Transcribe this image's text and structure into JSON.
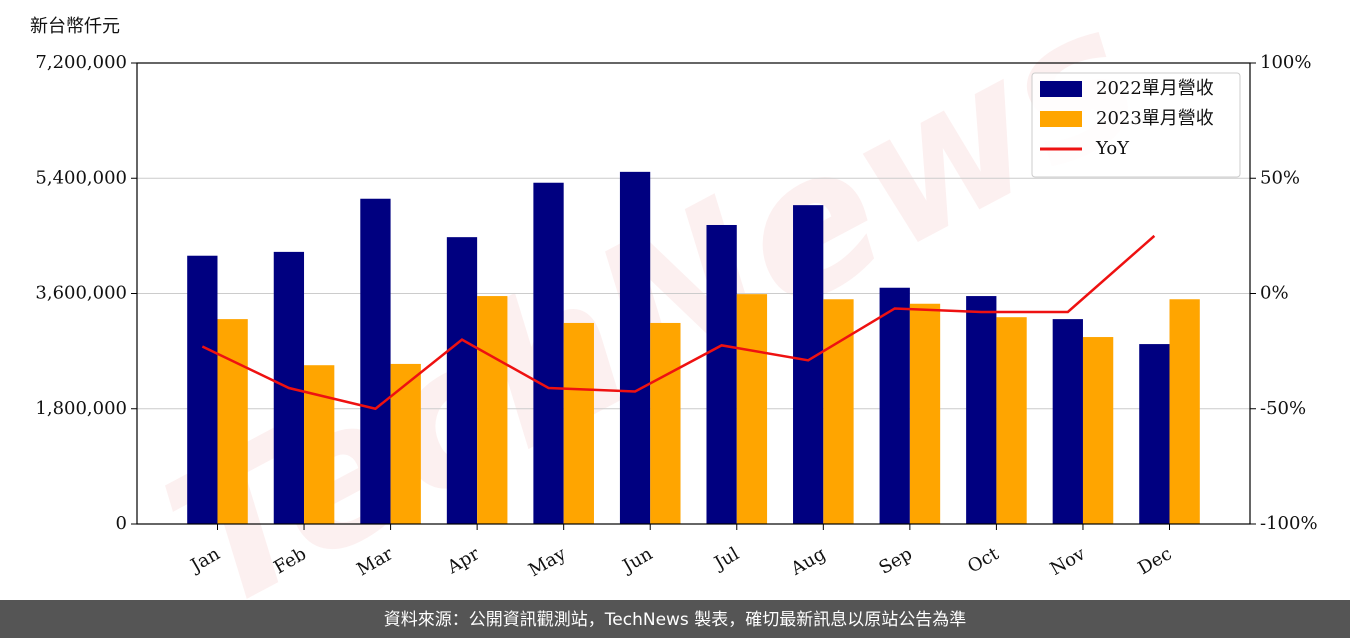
{
  "chart_data": {
    "type": "bar",
    "y_label": "新台幣仟元",
    "watermark": "TechNews",
    "source": "資料來源：公開資訊觀測站，TechNews 製表，確切最新訊息以原站公告為準",
    "categories": [
      "Jan",
      "Feb",
      "Mar",
      "Apr",
      "May",
      "Jun",
      "Jul",
      "Aug",
      "Sep",
      "Oct",
      "Nov",
      "Dec"
    ],
    "series": [
      {
        "name": "2022單月營收",
        "type": "bar",
        "color": "#000080",
        "axis": "y",
        "values": [
          4190000,
          4250000,
          5080000,
          4480000,
          5330000,
          5500000,
          4670000,
          4980000,
          3690000,
          3560000,
          3200000,
          2810000
        ]
      },
      {
        "name": "2023單月營收",
        "type": "bar",
        "color": "#ffa500",
        "axis": "y",
        "values": [
          3200000,
          2480000,
          2500000,
          3560000,
          3140000,
          3140000,
          3590000,
          3510000,
          3440000,
          3230000,
          2920000,
          3510000
        ]
      },
      {
        "name": "YoY",
        "type": "line",
        "color": "#ee1111",
        "axis": "y2",
        "values": [
          -23,
          -41,
          -50,
          -20,
          -41,
          -42.5,
          -22.5,
          -29,
          -6.5,
          -8,
          -8,
          25
        ]
      }
    ],
    "ylim": [
      0,
      7200000
    ],
    "yticks": [
      {
        "value": 0,
        "label": "0"
      },
      {
        "value": 1800000,
        "label": "1,800,000"
      },
      {
        "value": 3600000,
        "label": "3,600,000"
      },
      {
        "value": 5400000,
        "label": "5,400,000"
      },
      {
        "value": 7200000,
        "label": "7,200,000"
      }
    ],
    "y2lim": [
      -100,
      100
    ],
    "y2ticks": [
      {
        "value": -100,
        "label": "-100%"
      },
      {
        "value": -50,
        "label": "-50%"
      },
      {
        "value": 0,
        "label": "0%"
      },
      {
        "value": 50,
        "label": "50%"
      },
      {
        "value": 100,
        "label": "100%"
      }
    ],
    "grid": true,
    "legend": "upper right"
  }
}
